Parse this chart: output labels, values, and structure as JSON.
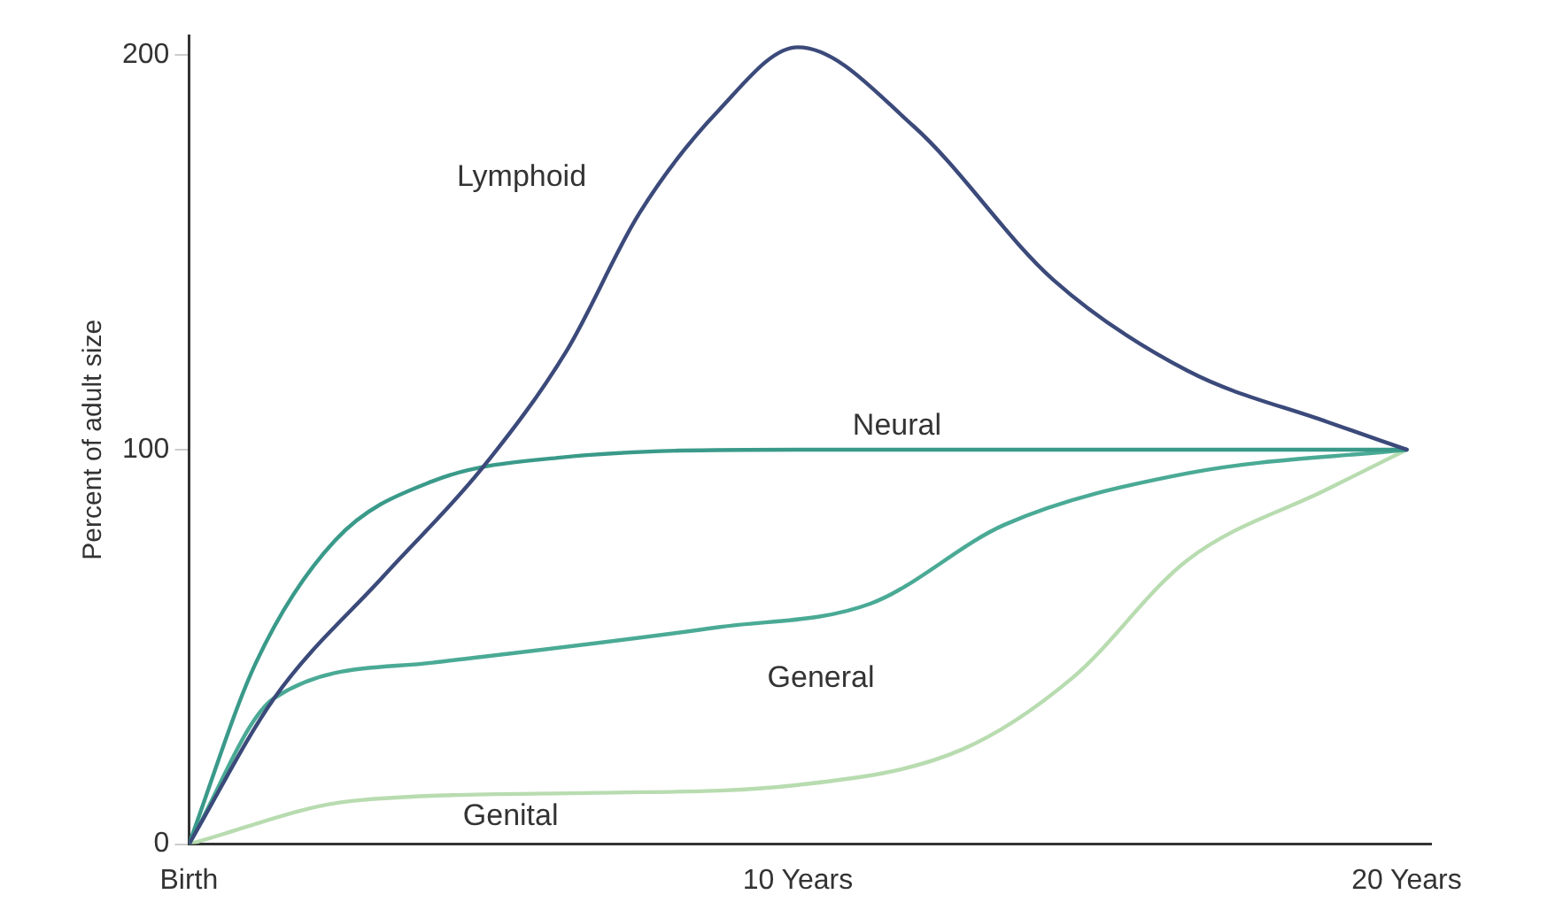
{
  "chart_data": {
    "type": "line",
    "ylabel": "Percent of adult size",
    "xlim": [
      0,
      20.4
    ],
    "xticks": [
      {
        "value": 0,
        "label": "Birth"
      },
      {
        "value": 10,
        "label": "10 Years"
      },
      {
        "value": 20,
        "label": "20 Years"
      }
    ],
    "ylim": [
      0,
      205
    ],
    "yticks": [
      0,
      100,
      200
    ],
    "grid": false,
    "legend": false,
    "marker": "none",
    "line_style": "solid",
    "series": [
      {
        "name": "Lymphoid",
        "color": "#3b4a7a",
        "x": [
          0,
          1.4,
          3.2,
          4.8,
          6.2,
          7.4,
          8.7,
          10,
          11.9,
          14.2,
          16.4,
          18.7,
          20
        ],
        "values": [
          0,
          37,
          68,
          95,
          125,
          160,
          186,
          202,
          182,
          143,
          120,
          107,
          100
        ]
      },
      {
        "name": "Neural",
        "color": "#3a9a8a",
        "x": [
          0,
          1.1,
          2.4,
          4.0,
          6.1,
          10,
          16.4,
          20
        ],
        "values": [
          0,
          46,
          77,
          92,
          98,
          100,
          100,
          100
        ]
      },
      {
        "name": "General",
        "color": "#4aaa95",
        "x": [
          0,
          1.4,
          4.0,
          8.7,
          11.2,
          13.4,
          16.4,
          20
        ],
        "values": [
          0,
          37,
          46,
          55,
          61,
          81,
          94,
          100
        ]
      },
      {
        "name": "Genital",
        "color": "#b8dcb0",
        "x": [
          0,
          2.7,
          6.7,
          10,
          12.7,
          14.5,
          16.4,
          18.7,
          20
        ],
        "values": [
          0,
          11,
          13,
          15,
          24,
          42,
          72,
          90,
          100
        ]
      }
    ]
  }
}
